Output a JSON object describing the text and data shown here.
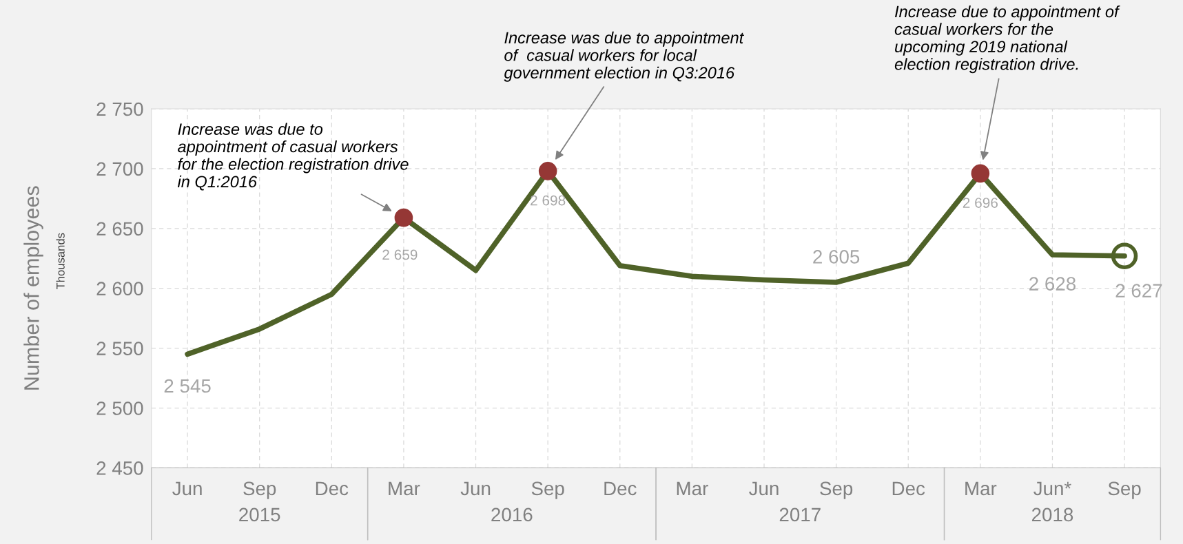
{
  "chart_data": {
    "type": "line",
    "ylabel": "Number of employees",
    "categories": [
      "Jun",
      "Sep",
      "Dec",
      "Mar",
      "Jun",
      "Sep",
      "Dec",
      "Mar",
      "Jun",
      "Sep",
      "Dec",
      "Mar",
      "Jun*",
      "Sep"
    ],
    "series": [
      {
        "color": "#4f6228",
        "values": [
          2545,
          2566,
          2595,
          2659,
          2615,
          2698,
          2619,
          2610,
          2607,
          2605,
          2621,
          2696,
          2628,
          2627
        ],
        "value_labels": [
          "2 545",
          null,
          null,
          "2 659",
          null,
          "2 698",
          null,
          null,
          null,
          "2 605",
          null,
          "2 696",
          "2 628",
          "2 627"
        ]
      },
      {
        "type": "scatter",
        "color": "#953735",
        "values": [
          null,
          null,
          null,
          2659,
          null,
          2698,
          null,
          null,
          null,
          null,
          null,
          2696,
          null,
          null
        ]
      },
      {
        "type": "scatter",
        "color": "#4f6228",
        "values": [
          null,
          null,
          null,
          null,
          null,
          null,
          null,
          null,
          null,
          null,
          null,
          null,
          null,
          2627
        ]
      }
    ],
    "ylim": [
      2450,
      2750
    ],
    "yticks": [
      {
        "value": 2450,
        "label": "2 450"
      },
      {
        "value": 2500,
        "label": "2 500"
      },
      {
        "value": 2550,
        "label": "2 550"
      },
      {
        "value": 2600,
        "label": "2 600"
      },
      {
        "value": 2650,
        "label": "2 650"
      },
      {
        "value": 2700,
        "label": "2 700"
      },
      {
        "value": 2750,
        "label": "2 750"
      }
    ],
    "grid": true,
    "legend": false,
    "annotations": [
      "Increase was due to\nappointment of casual workers\nfor the election registration drive\nin Q1:2016",
      "Increase was due to appointment\nof  casual workers for local\ngovernment election in Q3:2016",
      "Increase due to appointment of\ncasual workers for the\nupcoming 2019 national\nelection registration drive.",
      "Thousands",
      "2015",
      "2016",
      "2017",
      "2018"
    ]
  }
}
